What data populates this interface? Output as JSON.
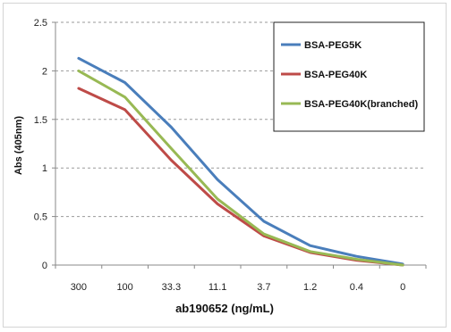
{
  "chart_data": {
    "type": "line",
    "title": "",
    "xlabel": "ab190652 (ng/mL)",
    "ylabel": "Abs (405nm)",
    "categories": [
      "300",
      "100",
      "33.3",
      "11.1",
      "3.7",
      "1.2",
      "0.4",
      "0"
    ],
    "ylim": [
      0,
      2.5
    ],
    "yticks": [
      "0",
      "0.5",
      "1",
      "1.5",
      "2",
      "2.5"
    ],
    "grid": "horizontal dashed",
    "legend_position": "top-right",
    "series": [
      {
        "name": "BSA-PEG5K",
        "color": "#4a7ebb",
        "values": [
          2.13,
          1.88,
          1.42,
          0.88,
          0.45,
          0.2,
          0.09,
          0.01
        ]
      },
      {
        "name": "BSA-PEG40K",
        "color": "#be4b48",
        "values": [
          1.82,
          1.6,
          1.08,
          0.63,
          0.3,
          0.13,
          0.05,
          0.0
        ]
      },
      {
        "name": "BSA-PEG40K(branched)",
        "color": "#98b954",
        "values": [
          2.0,
          1.73,
          1.2,
          0.68,
          0.32,
          0.14,
          0.06,
          0.0
        ]
      }
    ]
  }
}
